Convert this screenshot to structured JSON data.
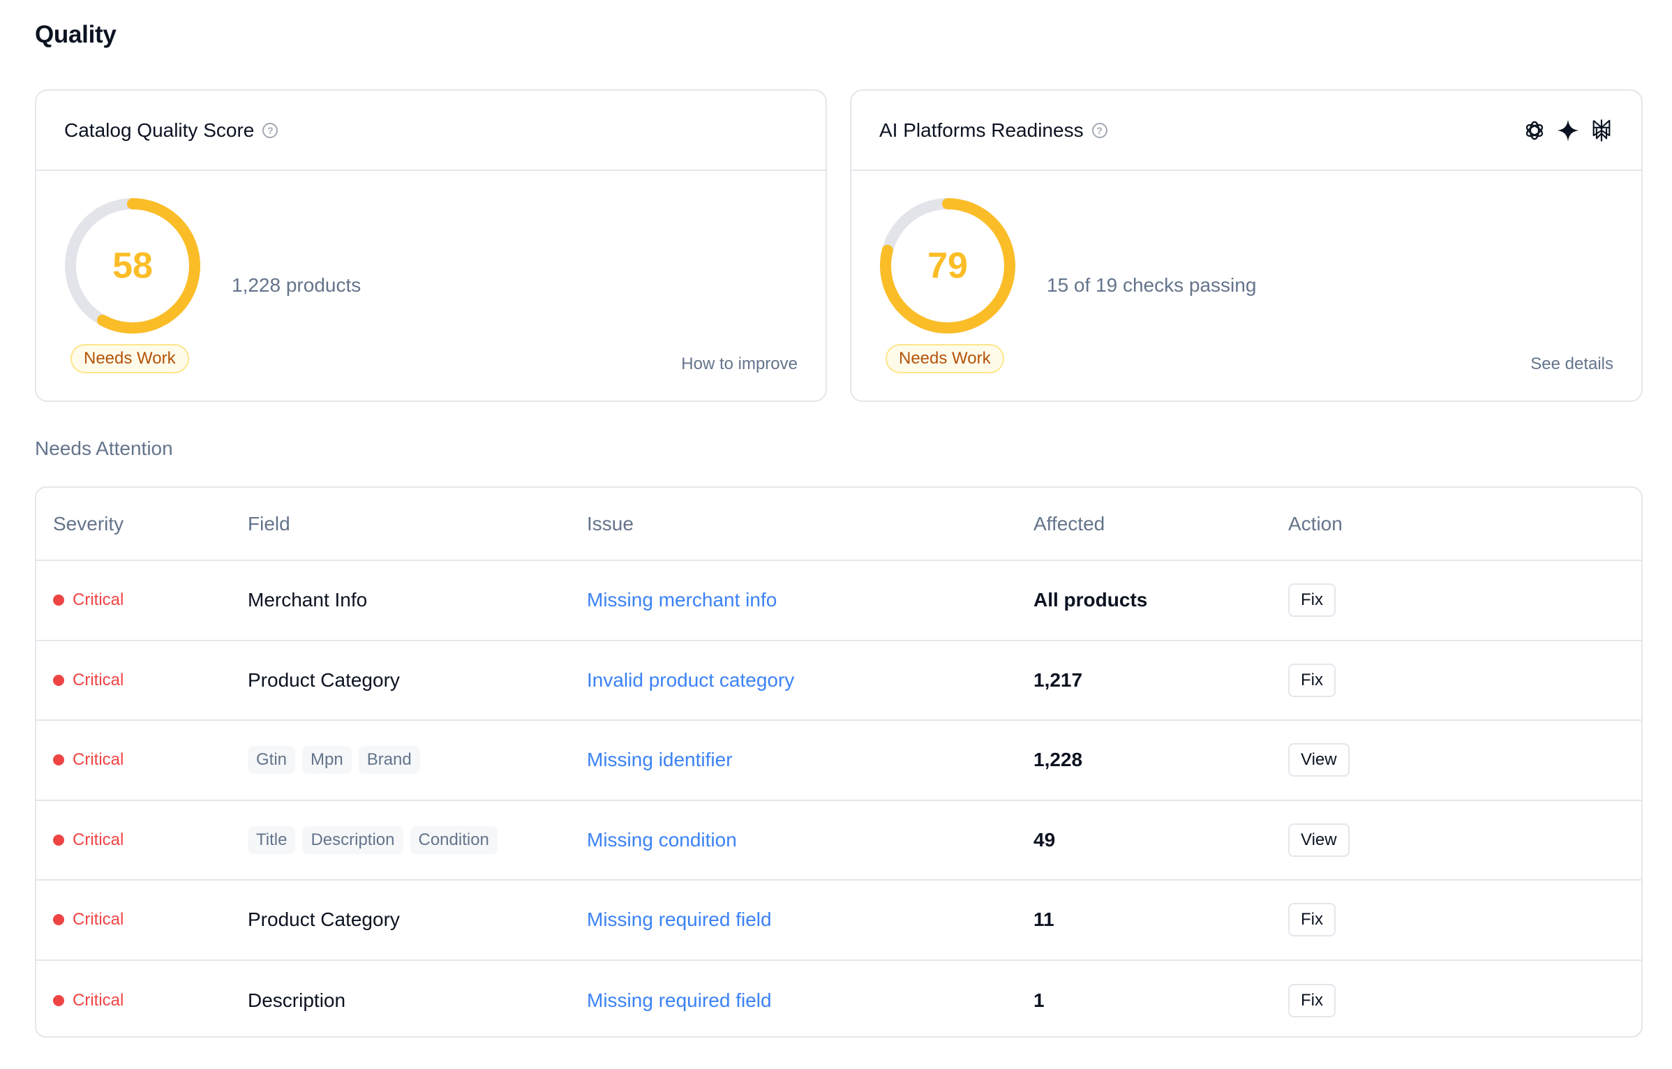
{
  "page": {
    "title": "Quality"
  },
  "cards": {
    "catalog": {
      "title": "Catalog Quality Score",
      "help_icon": "question-circle-icon",
      "score": "58",
      "score_percent": 58,
      "status": "Needs Work",
      "summary": "1,228 products",
      "link": "How to improve"
    },
    "ai": {
      "title": "AI Platforms Readiness",
      "help_icon": "question-circle-icon",
      "platform_icons": [
        "openai-icon",
        "gemini-sparkle-icon",
        "perplexity-icon"
      ],
      "score": "79",
      "score_percent": 79,
      "status": "Needs Work",
      "summary": "15 of 19 checks passing",
      "link": "See details"
    }
  },
  "colors": {
    "score_ring": "#fbbd27",
    "ring_track": "#e2e4e9",
    "critical": "#ef4444",
    "link": "#3b82f6",
    "status_text": "#b45309",
    "status_bg": "#fffbeb",
    "status_border": "#fde68a"
  },
  "attention": {
    "title": "Needs Attention",
    "columns": [
      "Severity",
      "Field",
      "Issue",
      "Affected",
      "Action"
    ],
    "rows": [
      {
        "severity": "Critical",
        "field": "Merchant Info",
        "tags": [],
        "issue": "Missing merchant info",
        "affected": "All products",
        "action": "Fix"
      },
      {
        "severity": "Critical",
        "field": "Product Category",
        "tags": [],
        "issue": "Invalid product category",
        "affected": "1,217",
        "action": "Fix"
      },
      {
        "severity": "Critical",
        "field": "",
        "tags": [
          "Gtin",
          "Mpn",
          "Brand"
        ],
        "issue": "Missing identifier",
        "affected": "1,228",
        "action": "View"
      },
      {
        "severity": "Critical",
        "field": "",
        "tags": [
          "Title",
          "Description",
          "Condition"
        ],
        "issue": "Missing condition",
        "affected": "49",
        "action": "View"
      },
      {
        "severity": "Critical",
        "field": "Product Category",
        "tags": [],
        "issue": "Missing required field",
        "affected": "11",
        "action": "Fix"
      },
      {
        "severity": "Critical",
        "field": "Description",
        "tags": [],
        "issue": "Missing required field",
        "affected": "1",
        "action": "Fix"
      }
    ]
  }
}
